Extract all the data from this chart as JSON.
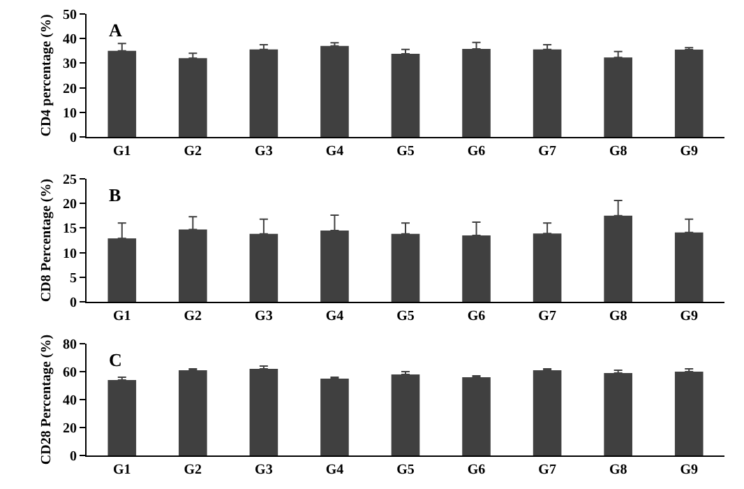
{
  "chart_data": [
    {
      "type": "bar",
      "annotations": [
        "A"
      ],
      "ylabel": "CD4 percentage (%)",
      "categories": [
        "G1",
        "G2",
        "G3",
        "G4",
        "G5",
        "G6",
        "G7",
        "G8",
        "G9"
      ],
      "color": "#404040",
      "values": [
        35,
        32,
        35.6,
        37,
        33.8,
        35.8,
        35.6,
        32.3,
        35.5
      ],
      "errors": [
        [
          35,
          38
        ],
        [
          32,
          34
        ],
        [
          35.6,
          37.5
        ],
        [
          37,
          38.3
        ],
        [
          33.8,
          35.6
        ],
        [
          35.8,
          38.4
        ],
        [
          35.6,
          37.5
        ],
        [
          32.3,
          34.7
        ],
        [
          35.5,
          36.3
        ]
      ],
      "ylim": [
        0,
        50
      ],
      "yticks": [
        0,
        10,
        20,
        30,
        40,
        50
      ]
    },
    {
      "type": "bar",
      "annotations": [
        "B"
      ],
      "ylabel": "CD8 Percentage (%)",
      "categories": [
        "G1",
        "G2",
        "G3",
        "G4",
        "G5",
        "G6",
        "G7",
        "G8",
        "G9"
      ],
      "color": "#404040",
      "values": [
        12.9,
        14.7,
        13.8,
        14.5,
        13.8,
        13.5,
        13.9,
        17.5,
        14.1
      ],
      "errors": [
        [
          12.9,
          16
        ],
        [
          14.7,
          17.3
        ],
        [
          13.8,
          16.8
        ],
        [
          14.5,
          17.6
        ],
        [
          13.8,
          16
        ],
        [
          13.5,
          16.2
        ],
        [
          13.9,
          16
        ],
        [
          17.5,
          20.6
        ],
        [
          14.1,
          16.8
        ]
      ],
      "ylim": [
        0,
        25
      ],
      "yticks": [
        0,
        5,
        10,
        15,
        20,
        25
      ]
    },
    {
      "type": "bar",
      "annotations": [
        "C"
      ],
      "ylabel": "CD28 Percentage (%)",
      "categories": [
        "G1",
        "G2",
        "G3",
        "G4",
        "G5",
        "G6",
        "G7",
        "G8",
        "G9"
      ],
      "color": "#404040",
      "values": [
        54,
        61,
        62,
        55,
        58,
        56,
        61,
        59,
        60
      ],
      "errors": [
        [
          54,
          56
        ],
        [
          61,
          62
        ],
        [
          62,
          64
        ],
        [
          55,
          56
        ],
        [
          58,
          60
        ],
        [
          56,
          57
        ],
        [
          61,
          62
        ],
        [
          59,
          61
        ],
        [
          60,
          62
        ]
      ],
      "ylim": [
        0,
        80
      ],
      "yticks": [
        0,
        20,
        40,
        60,
        80
      ]
    }
  ]
}
